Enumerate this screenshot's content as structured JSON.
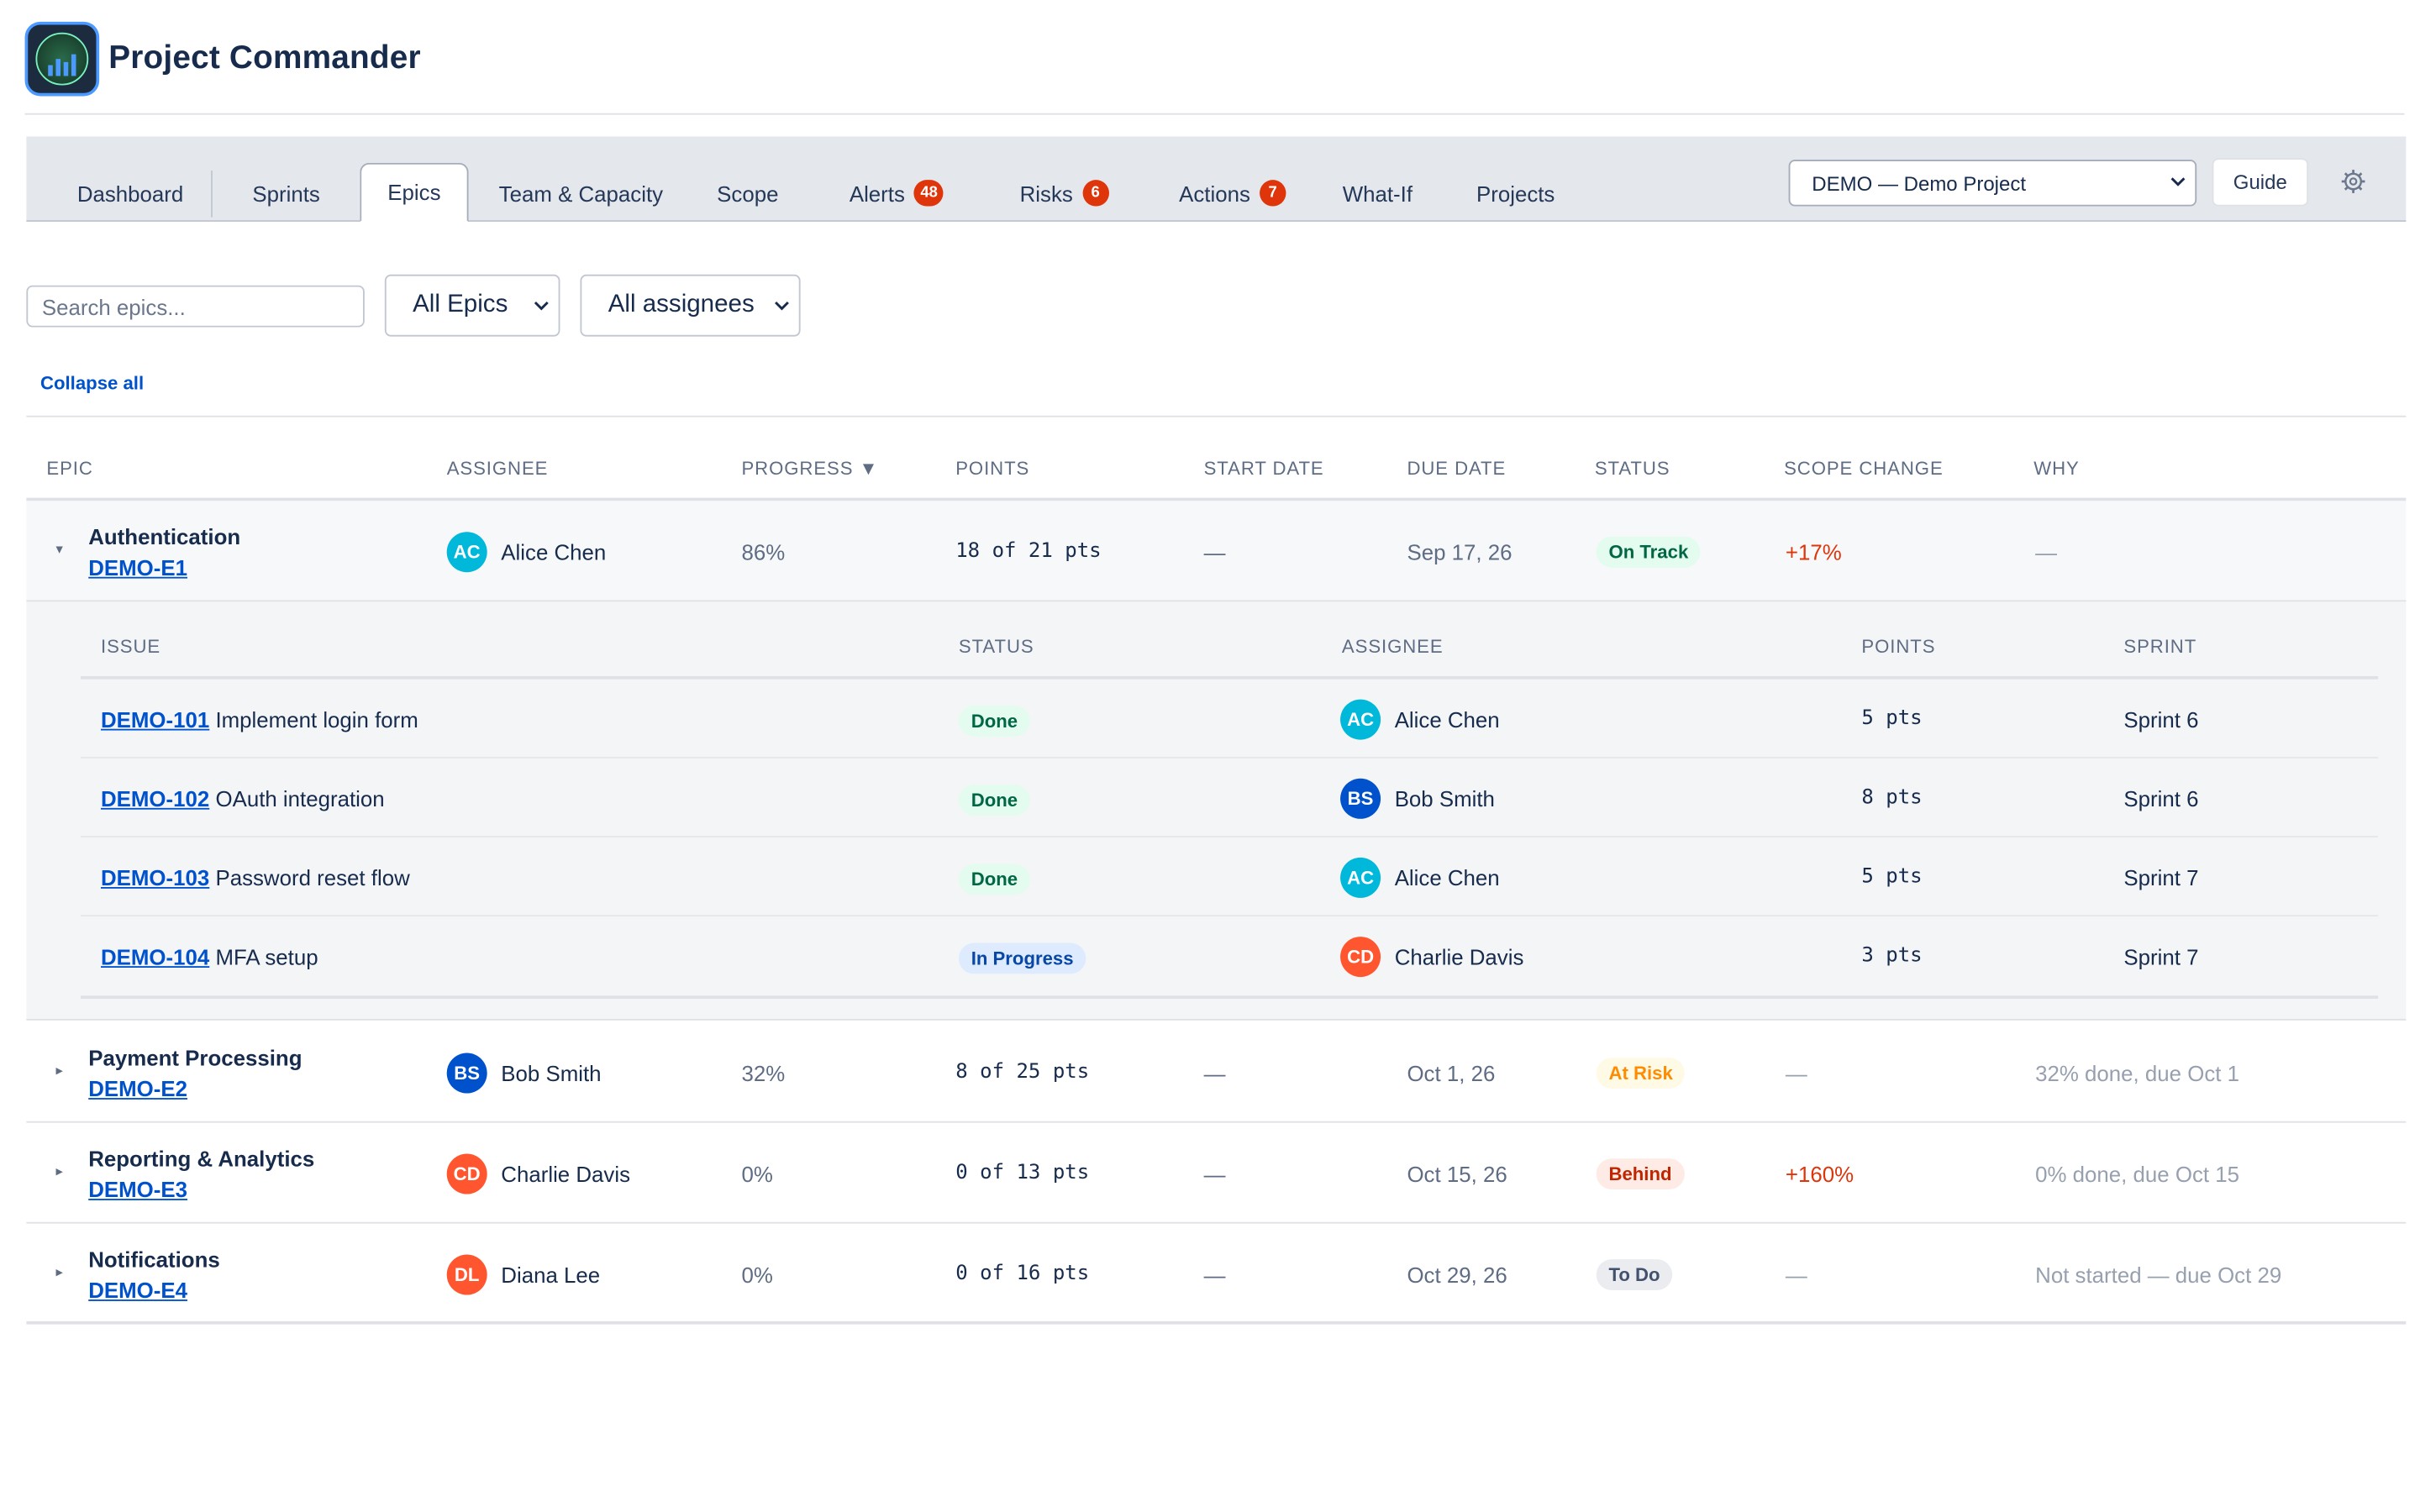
{
  "app": {
    "title": "Project Commander"
  },
  "tabs": [
    {
      "label": "Dashboard"
    },
    {
      "label": "Sprints"
    },
    {
      "label": "Epics",
      "active": true
    },
    {
      "label": "Team & Capacity"
    },
    {
      "label": "Scope"
    },
    {
      "label": "Alerts",
      "badge": "48"
    },
    {
      "label": "Risks",
      "badge": "6"
    },
    {
      "label": "Actions",
      "badge": "7"
    },
    {
      "label": "What-If"
    },
    {
      "label": "Projects"
    }
  ],
  "toolbar": {
    "project_select": "DEMO — Demo Project",
    "guide_label": "Guide",
    "settings_icon": "gear-icon"
  },
  "filters": {
    "search_placeholder": "Search epics...",
    "epic_filter": "All Epics",
    "assignee_filter": "All assignees",
    "collapse_label": "Collapse all"
  },
  "epic_table": {
    "headers": {
      "epic": "EPIC",
      "assignee": "ASSIGNEE",
      "progress": "PROGRESS ▼",
      "points": "POINTS",
      "start": "START DATE",
      "due": "DUE DATE",
      "status": "STATUS",
      "scope": "SCOPE CHANGE",
      "why": "WHY"
    },
    "rows": [
      {
        "caret": "▾",
        "name": "Authentication",
        "key": "DEMO-E1",
        "initials": "AC",
        "assignee": "Alice Chen",
        "avatar_color": "#00b8d9",
        "progress": "86%",
        "points": "18 of 21 pts",
        "start": "—",
        "due": "Sep 17, 26",
        "status": "On Track",
        "status_bg": "#e3fcef",
        "status_fg": "#006644",
        "scope": "+17%",
        "scope_color": "#de350b",
        "why": "—"
      },
      {
        "caret": "▸",
        "name": "Payment Processing",
        "key": "DEMO-E2",
        "initials": "BS",
        "assignee": "Bob Smith",
        "avatar_color": "#0052cc",
        "progress": "32%",
        "points": "8 of 25 pts",
        "start": "—",
        "due": "Oct 1, 26",
        "status": "At Risk",
        "status_bg": "#fffae6",
        "status_fg": "#ff8b00",
        "scope": "—",
        "scope_color": "#97a0af",
        "why": "32% done, due Oct 1"
      },
      {
        "caret": "▸",
        "name": "Reporting & Analytics",
        "key": "DEMO-E3",
        "initials": "CD",
        "assignee": "Charlie Davis",
        "avatar_color": "#ff5630",
        "progress": "0%",
        "points": "0 of 13 pts",
        "start": "—",
        "due": "Oct 15, 26",
        "status": "Behind",
        "status_bg": "#ffebe6",
        "status_fg": "#bf2600",
        "scope": "+160%",
        "scope_color": "#de350b",
        "why": "0% done, due Oct 15"
      },
      {
        "caret": "▸",
        "name": "Notifications",
        "key": "DEMO-E4",
        "initials": "DL",
        "assignee": "Diana Lee",
        "avatar_color": "#ff5630",
        "progress": "0%",
        "points": "0 of 16 pts",
        "start": "—",
        "due": "Oct 29, 26",
        "status": "To Do",
        "status_bg": "#ebecf0",
        "status_fg": "#42526e",
        "scope": "—",
        "scope_color": "#97a0af",
        "why": "Not started — due Oct 29"
      }
    ]
  },
  "issue_table": {
    "headers": {
      "issue": "ISSUE",
      "status": "STATUS",
      "assignee": "ASSIGNEE",
      "points": "POINTS",
      "sprint": "SPRINT"
    },
    "rows": [
      {
        "key": "DEMO-101",
        "title": "Implement login form",
        "status": "Done",
        "status_bg": "#e3fcef",
        "status_fg": "#006644",
        "initials": "AC",
        "assignee": "Alice Chen",
        "avatar_color": "#00b8d9",
        "points": "5 pts",
        "sprint": "Sprint 6"
      },
      {
        "key": "DEMO-102",
        "title": "OAuth integration",
        "status": "Done",
        "status_bg": "#e3fcef",
        "status_fg": "#006644",
        "initials": "BS",
        "assignee": "Bob Smith",
        "avatar_color": "#0052cc",
        "points": "8 pts",
        "sprint": "Sprint 6"
      },
      {
        "key": "DEMO-103",
        "title": "Password reset flow",
        "status": "Done",
        "status_bg": "#e3fcef",
        "status_fg": "#006644",
        "initials": "AC",
        "assignee": "Alice Chen",
        "avatar_color": "#00b8d9",
        "points": "5 pts",
        "sprint": "Sprint 7"
      },
      {
        "key": "DEMO-104",
        "title": "MFA setup",
        "status": "In Progress",
        "status_bg": "#deebff",
        "status_fg": "#0747a6",
        "initials": "CD",
        "assignee": "Charlie Davis",
        "avatar_color": "#ff5630",
        "points": "3 pts",
        "sprint": "Sprint 7"
      }
    ]
  }
}
